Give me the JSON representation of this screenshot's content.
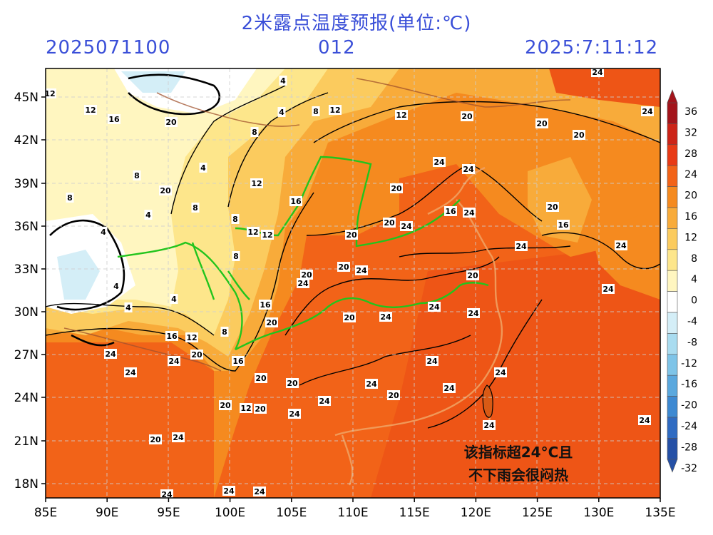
{
  "header": {
    "title": "2米露点温度预报(单位:℃)",
    "run_time": "2025071100",
    "lead_time": "012",
    "valid_time": "2025:7:11:12"
  },
  "annotation": {
    "line1": "该指标超24°C且",
    "line2": "不下雨会很闷热"
  },
  "axes": {
    "lat_labels": [
      "45N",
      "42N",
      "39N",
      "36N",
      "33N",
      "30N",
      "27N",
      "24N",
      "21N",
      "18N"
    ],
    "lon_labels": [
      "85E",
      "90E",
      "95E",
      "100E",
      "105E",
      "110E",
      "115E",
      "120E",
      "125E",
      "130E",
      "135E"
    ]
  },
  "colorbar": {
    "labels": [
      "36",
      "32",
      "28",
      "24",
      "20",
      "16",
      "12",
      "8",
      "4",
      "0",
      "-4",
      "-8",
      "-12",
      "-16",
      "-20",
      "-24",
      "-28",
      "-32"
    ],
    "colors": [
      "#a3141b",
      "#cc2418",
      "#e83a16",
      "#f26318",
      "#f58a1f",
      "#f8ab3a",
      "#fbcb5e",
      "#fde68b",
      "#fff6c0",
      "#ffffff",
      "#d4eef7",
      "#a9dcf0",
      "#7ec4e8",
      "#5aa8de",
      "#3d89d2",
      "#2f6bc2",
      "#2550a6"
    ]
  },
  "map_legend_colors": {
    "river": "#22c41d",
    "coastline": "#f0a060",
    "contour": "#000000"
  },
  "contour_labels": [
    "12",
    "12",
    "16",
    "20",
    "4",
    "8",
    "12",
    "4",
    "8",
    "20",
    "24",
    "20",
    "12",
    "4",
    "8",
    "20",
    "8",
    "12",
    "20",
    "24",
    "4",
    "8",
    "12",
    "4",
    "8",
    "16",
    "20",
    "20",
    "24",
    "16",
    "8",
    "12",
    "20",
    "24",
    "20",
    "4",
    "4",
    "20",
    "24",
    "20",
    "24",
    "4",
    "8",
    "20",
    "16",
    "20",
    "24",
    "24",
    "16",
    "12",
    "24",
    "24",
    "16",
    "20",
    "24",
    "24",
    "12",
    "20",
    "24",
    "16",
    "24",
    "20",
    "24",
    "20",
    "24",
    "20",
    "24",
    "24",
    "20",
    "24",
    "24",
    "24",
    "24",
    "20",
    "24",
    "24",
    "24",
    "24",
    "20",
    "24",
    "24",
    "24"
  ]
}
